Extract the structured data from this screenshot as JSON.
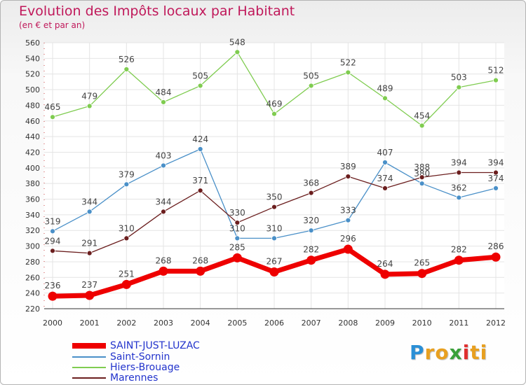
{
  "title": "Evolution des Impôts locaux par Habitant",
  "subtitle": "(en € et par an)",
  "logo": {
    "text": "Proxiti",
    "letters": [
      "P",
      "r",
      "o",
      "x",
      "i",
      "t",
      "i"
    ],
    "colors": [
      "#2a8fd6",
      "#e8a020",
      "#e8a020",
      "#3aa03a",
      "#e03030",
      "#e8a020",
      "#e8a020"
    ]
  },
  "chart_data": {
    "type": "line",
    "x": [
      "2000",
      "2001",
      "2002",
      "2003",
      "2004",
      "2005",
      "2006",
      "2007",
      "2008",
      "2009",
      "2010",
      "2011",
      "2012"
    ],
    "ylim": [
      220,
      560
    ],
    "yticks": [
      220,
      240,
      260,
      280,
      300,
      320,
      340,
      360,
      380,
      400,
      420,
      440,
      460,
      480,
      500,
      520,
      540,
      560
    ],
    "grid": true,
    "legend_position": "bottom-left",
    "series": [
      {
        "name": "Hiers-Brouage",
        "color": "#7fcc50",
        "values": [
          465,
          479,
          526,
          484,
          505,
          548,
          469,
          505,
          522,
          489,
          454,
          503,
          512
        ]
      },
      {
        "name": "Saint-Sornin",
        "color": "#4a90c8",
        "values": [
          319,
          344,
          379,
          403,
          424,
          310,
          310,
          320,
          333,
          407,
          380,
          362,
          374
        ]
      },
      {
        "name": "Marennes",
        "color": "#6b1e1e",
        "values": [
          294,
          291,
          310,
          344,
          371,
          330,
          350,
          368,
          389,
          374,
          388,
          394,
          394
        ]
      },
      {
        "name": "SAINT-JUST-LUZAC",
        "color": "#ee0000",
        "values": [
          236,
          237,
          251,
          268,
          268,
          285,
          267,
          282,
          296,
          264,
          265,
          282,
          286
        ]
      }
    ]
  },
  "legend": [
    {
      "label": "SAINT-JUST-LUZAC",
      "color": "#ee0000"
    },
    {
      "label": "Saint-Sornin",
      "color": "#4a90c8"
    },
    {
      "label": "Hiers-Brouage",
      "color": "#7fcc50"
    },
    {
      "label": "Marennes",
      "color": "#6b1e1e"
    }
  ]
}
